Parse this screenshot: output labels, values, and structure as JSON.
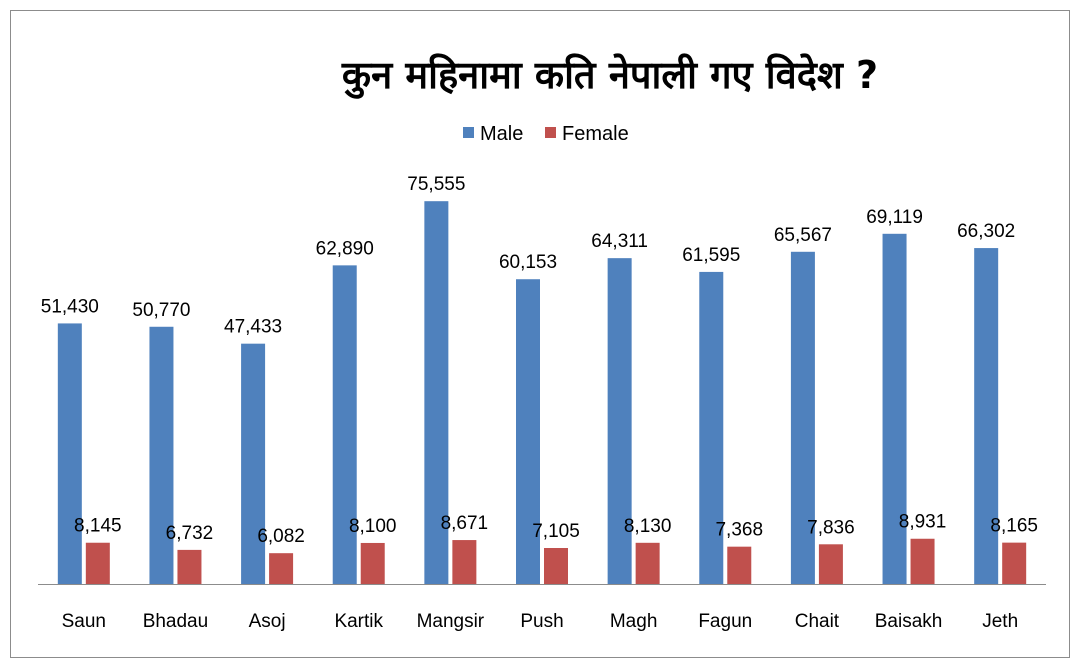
{
  "chart_data": {
    "type": "bar",
    "title": "कुन महिनामा कति नेपाली गए विदेश ?",
    "xlabel": "",
    "ylabel": "",
    "categories": [
      "Saun",
      "Bhadau",
      "Asoj",
      "Kartik",
      "Mangsir",
      "Push",
      "Magh",
      "Fagun",
      "Chait",
      "Baisakh",
      "Jeth"
    ],
    "series": [
      {
        "name": "Male",
        "color": "#4f81bd",
        "values": [
          51430,
          50770,
          47433,
          62890,
          75555,
          60153,
          64311,
          61595,
          65567,
          69119,
          66302
        ],
        "labels": [
          "51,430",
          "50,770",
          "47,433",
          "62,890",
          "75,555",
          "60,153",
          "64,311",
          "61,595",
          "65,567",
          "69,119",
          "66,302"
        ]
      },
      {
        "name": "Female",
        "color": "#c0504d",
        "values": [
          8145,
          6732,
          6082,
          8100,
          8671,
          7105,
          8130,
          7368,
          7836,
          8931,
          8165
        ],
        "labels": [
          "8,145",
          "6,732",
          "6,082",
          "8,100",
          "8,671",
          "7,105",
          "8,130",
          "7,368",
          "7,836",
          "8,931",
          "8,165"
        ]
      }
    ],
    "ylim": [
      0,
      80000
    ],
    "grid": false,
    "legend": "top-center",
    "axis_color": "#8c8c8c"
  }
}
